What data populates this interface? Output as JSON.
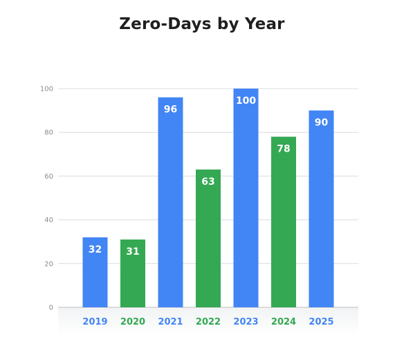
{
  "chart_data": {
    "type": "bar",
    "title": "Zero-Days by Year",
    "categories": [
      "2019",
      "2020",
      "2021",
      "2022",
      "2023",
      "2024",
      "2025"
    ],
    "values": [
      32,
      31,
      96,
      63,
      100,
      78,
      90
    ],
    "bar_colors": [
      "#4285f4",
      "#34a853",
      "#4285f4",
      "#34a853",
      "#4285f4",
      "#34a853",
      "#4285f4"
    ],
    "ylim": [
      0,
      100
    ],
    "yticks": [
      0,
      20,
      40,
      60,
      80,
      100
    ],
    "grid": true,
    "xlabel": "",
    "ylabel": ""
  }
}
